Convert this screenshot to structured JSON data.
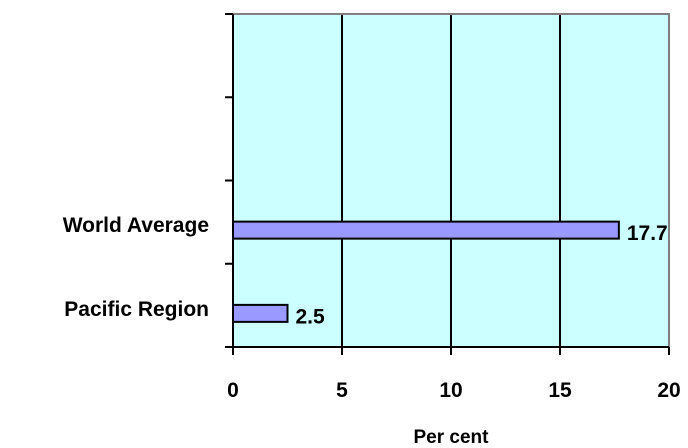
{
  "chart_data": {
    "type": "bar",
    "orientation": "horizontal",
    "title": "",
    "xlabel": "Per cent",
    "ylabel": "",
    "categories": [
      "World Average",
      "Pacific Region"
    ],
    "values": [
      17.7,
      2.5
    ],
    "data_labels": [
      "17.7",
      "2.5"
    ],
    "xlim": [
      0,
      20
    ],
    "x_ticks": [
      0,
      5,
      10,
      15,
      20
    ],
    "x_tick_labels": [
      "0",
      "5",
      "10",
      "15",
      "20"
    ],
    "grid": "vertical",
    "legend": "none",
    "colors": {
      "plot_background": "#ccffff",
      "bar_fill": "#9999ff",
      "bar_stroke": "#000000",
      "grid": "#000000",
      "plot_border": "#808080"
    }
  }
}
